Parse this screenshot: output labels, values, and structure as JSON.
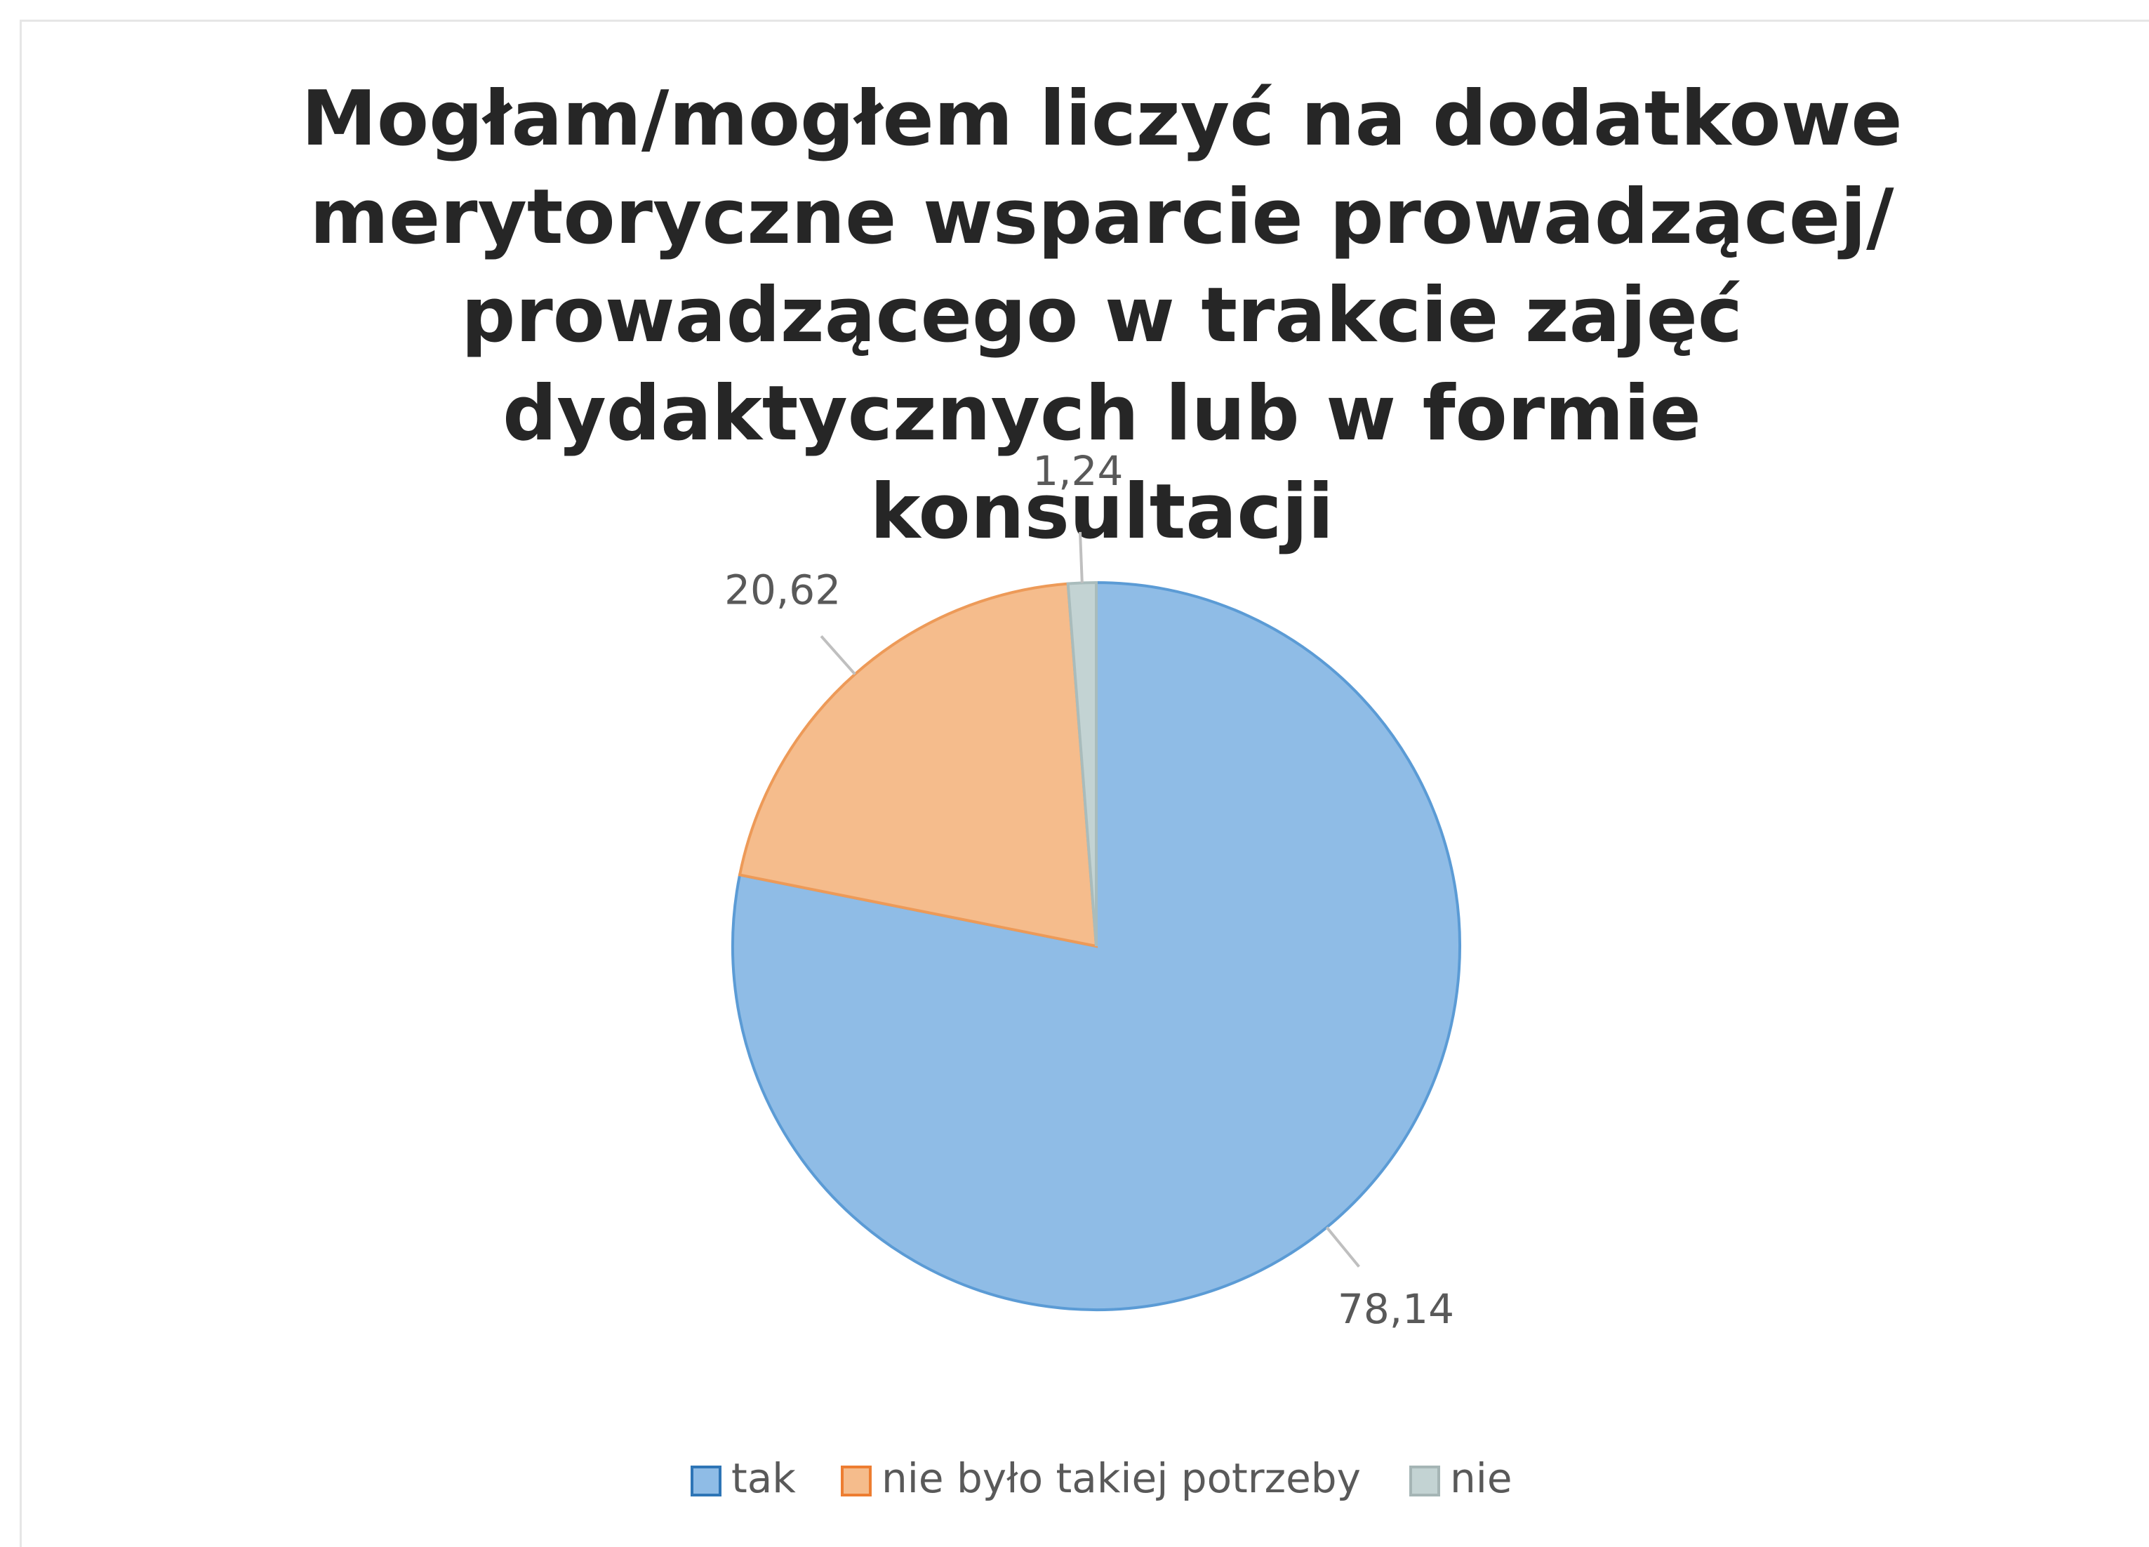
{
  "chart_data": {
    "type": "pie",
    "title": "Mogłam/mogłem liczyć na dodatkowe merytoryczne wsparcie prowadzącej/ prowadzącego w trakcie zajęć dydaktycznych lub w formie konsultacji",
    "categories": [
      "tak",
      "nie było takiej potrzeby",
      "nie"
    ],
    "values": [
      78.14,
      20.62,
      1.24
    ],
    "value_labels": [
      "78,14",
      "20,62",
      "1,24"
    ],
    "colors": [
      "#8fbce6",
      "#f5bc8c",
      "#c3d3d3"
    ],
    "legend": "bottom"
  }
}
